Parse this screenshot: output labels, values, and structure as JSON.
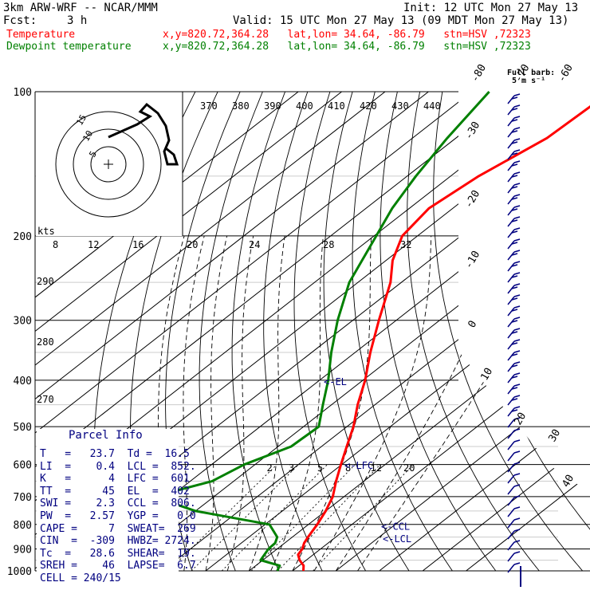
{
  "header": {
    "model": "3km ARW-WRF -- NCAR/MMM",
    "init": "Init: 12 UTC Mon 27 May 13",
    "fcst_label": "Fcst:",
    "fcst_value": "3 h",
    "valid": "Valid: 15 UTC Mon 27 May 13 (09 MDT Mon 27 May 13)",
    "temp_line": {
      "name": "Temperature",
      "info": "x,y=820.72,364.28   lat,lon= 34.64, -86.79   stn=HSV ,72323",
      "color": "#ff0000"
    },
    "dew_line": {
      "name": "Dewpoint temperature",
      "info": "x,y=820.72,364.28   lat,lon= 34.64, -86.79   stn=HSV ,72323",
      "color": "#008000"
    }
  },
  "chart_data": {
    "type": "line",
    "pressure_axis": {
      "ticks": [
        100,
        200,
        300,
        400,
        500,
        600,
        700,
        800,
        900,
        1000
      ],
      "extra_lines": [
        150,
        250,
        350,
        450,
        550,
        650,
        750,
        850,
        950
      ],
      "range": [
        100,
        1000
      ],
      "scale": "log"
    },
    "temperature_axis": {
      "isotherms": [
        -80,
        -70,
        -60,
        -50,
        -40,
        -30,
        -20,
        -10,
        0,
        10,
        20,
        30,
        40
      ],
      "range_at_1000": [
        -40,
        40
      ]
    },
    "series": [
      {
        "name": "Temperature",
        "color": "#ff0000",
        "points": [
          [
            1000,
            22.5
          ],
          [
            975,
            21.0
          ],
          [
            950,
            18.5
          ],
          [
            925,
            16.5
          ],
          [
            900,
            15.8
          ],
          [
            875,
            14.5
          ],
          [
            850,
            13.6
          ],
          [
            800,
            12.0
          ],
          [
            750,
            10.0
          ],
          [
            700,
            7.4
          ],
          [
            650,
            3.6
          ],
          [
            600,
            -0.2
          ],
          [
            550,
            -4.2
          ],
          [
            500,
            -8.5
          ],
          [
            450,
            -14.0
          ],
          [
            400,
            -19.5
          ],
          [
            350,
            -26.5
          ],
          [
            300,
            -34.0
          ],
          [
            250,
            -42.5
          ],
          [
            225,
            -48.5
          ],
          [
            200,
            -53.5
          ],
          [
            175,
            -55.5
          ],
          [
            150,
            -53.5
          ],
          [
            125,
            -49.0
          ],
          [
            100,
            -48.0
          ]
        ]
      },
      {
        "name": "Dewpoint temperature",
        "color": "#008000",
        "points": [
          [
            1000,
            16.5
          ],
          [
            975,
            15.5
          ],
          [
            950,
            9.5
          ],
          [
            900,
            8.0
          ],
          [
            875,
            7.8
          ],
          [
            850,
            6.5
          ],
          [
            800,
            1.0
          ],
          [
            750,
            -20.0
          ],
          [
            700,
            -34.0
          ],
          [
            650,
            -25.0
          ],
          [
            600,
            -22.5
          ],
          [
            550,
            -17.0
          ],
          [
            500,
            -16.5
          ],
          [
            450,
            -22.0
          ],
          [
            400,
            -28.0
          ],
          [
            350,
            -35.5
          ],
          [
            300,
            -43.5
          ],
          [
            250,
            -52.0
          ],
          [
            200,
            -59.5
          ],
          [
            175,
            -64.0
          ],
          [
            150,
            -68.0
          ],
          [
            125,
            -72.0
          ],
          [
            100,
            -76.0
          ]
        ]
      }
    ],
    "mixing_ratio_labels": [
      "2",
      "3",
      "5",
      "8",
      "12",
      "20"
    ],
    "theta_labels_top": [
      "370",
      "380",
      "390",
      "400",
      "410",
      "420",
      "430",
      "440"
    ],
    "theta_labels_left": [
      "290",
      "280",
      "270"
    ],
    "hodograph": {
      "speed_labels": [
        "8",
        "12",
        "16",
        "20",
        "24",
        "28",
        "32"
      ],
      "units": "kts",
      "ring_labels": [
        "5",
        "10",
        "15"
      ]
    },
    "annotations": [
      {
        "text": "EL",
        "pressure": 402
      },
      {
        "text": "LFC",
        "pressure": 601
      },
      {
        "text": "CCL",
        "pressure": 806
      },
      {
        "text": "LCL",
        "pressure": 852
      }
    ],
    "wind_barbs": {
      "legend": [
        "Full barb:",
        "5 m s⁻¹"
      ],
      "color": "#000080"
    }
  },
  "parcel_info": {
    "title": "Parcel Info",
    "rows": [
      "T   =   23.7  Td =  16.5",
      "LI  =    0.4  LCL =  852.",
      "K   =      4  LFC =  601",
      "TT  =     45  EL  =  402",
      "SWI =    2.3  CCL =  806.",
      "PW  =   2.57  YGP =   0.0",
      "CAPE =     7  SWEAT=  269",
      "CIN  =  -309  HWBZ= 2724.",
      "Tc  =   28.6  SHEAR=  19.",
      "SREH =    46  LAPSE=  6.7",
      "CELL = 240/15"
    ]
  }
}
